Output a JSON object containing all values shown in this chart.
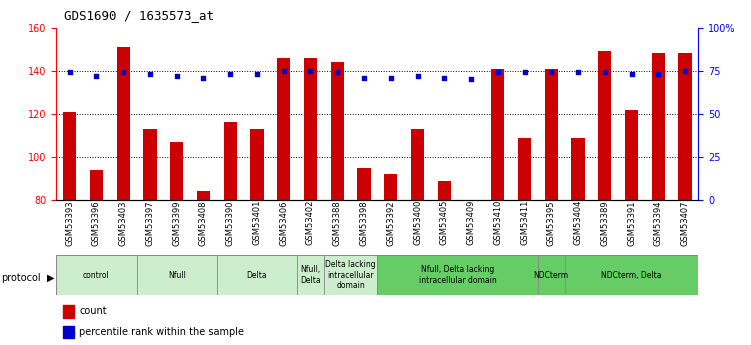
{
  "title": "GDS1690 / 1635573_at",
  "samples": [
    "GSM53393",
    "GSM53396",
    "GSM53403",
    "GSM53397",
    "GSM53399",
    "GSM53408",
    "GSM53390",
    "GSM53401",
    "GSM53406",
    "GSM53402",
    "GSM53388",
    "GSM53398",
    "GSM53392",
    "GSM53400",
    "GSM53405",
    "GSM53409",
    "GSM53410",
    "GSM53411",
    "GSM53395",
    "GSM53404",
    "GSM53389",
    "GSM53391",
    "GSM53394",
    "GSM53407"
  ],
  "bar_values": [
    121,
    94,
    151,
    113,
    107,
    84,
    116,
    113,
    146,
    146,
    144,
    95,
    92,
    113,
    89,
    80,
    141,
    109,
    141,
    109,
    149,
    122,
    148,
    148
  ],
  "percentile_values": [
    74,
    72,
    74,
    73,
    72,
    71,
    73,
    73,
    75,
    75,
    74,
    71,
    71,
    72,
    71,
    70,
    74,
    74,
    74,
    74,
    74,
    73,
    73,
    75
  ],
  "ylim_left": [
    80,
    160
  ],
  "ylim_right": [
    0,
    100
  ],
  "yticks_left": [
    80,
    100,
    120,
    140,
    160
  ],
  "yticks_right": [
    0,
    25,
    50,
    75,
    100
  ],
  "ytick_labels_right": [
    "0",
    "25",
    "50",
    "75",
    "100%"
  ],
  "bar_color": "#cc0000",
  "dot_color": "#0000cc",
  "gridline_y": [
    100,
    120,
    140
  ],
  "groups": [
    {
      "label": "control",
      "start": 0,
      "end": 3,
      "color": "#cceecc"
    },
    {
      "label": "Nfull",
      "start": 3,
      "end": 6,
      "color": "#cceecc"
    },
    {
      "label": "Delta",
      "start": 6,
      "end": 9,
      "color": "#cceecc"
    },
    {
      "label": "Nfull,\nDelta",
      "start": 9,
      "end": 10,
      "color": "#cceecc"
    },
    {
      "label": "Delta lacking\nintracellular\ndomain",
      "start": 10,
      "end": 12,
      "color": "#cceecc"
    },
    {
      "label": "Nfull, Delta lacking\nintracellular domain",
      "start": 12,
      "end": 18,
      "color": "#66cc66"
    },
    {
      "label": "NDCterm",
      "start": 18,
      "end": 19,
      "color": "#66cc66"
    },
    {
      "label": "NDCterm, Delta",
      "start": 19,
      "end": 24,
      "color": "#66cc66"
    }
  ],
  "protocol_label": "protocol",
  "legend_count_label": "count",
  "legend_pct_label": "percentile rank within the sample",
  "title_fontsize": 9,
  "tick_fontsize": 6,
  "bar_width": 0.5
}
